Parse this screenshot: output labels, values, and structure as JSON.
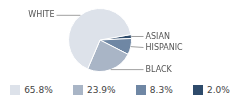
{
  "chart_data": {
    "type": "pie",
    "categories": [
      "WHITE",
      "BLACK",
      "HISPANIC",
      "ASIAN"
    ],
    "values": [
      65.8,
      23.9,
      8.3,
      2.0
    ],
    "value_labels": [
      "65.8%",
      "23.9%",
      "8.3%",
      "2.0%"
    ],
    "colors": [
      "#dde2ea",
      "#a9b5c6",
      "#6f87a4",
      "#2e4b6b"
    ],
    "legend": "bottom"
  }
}
